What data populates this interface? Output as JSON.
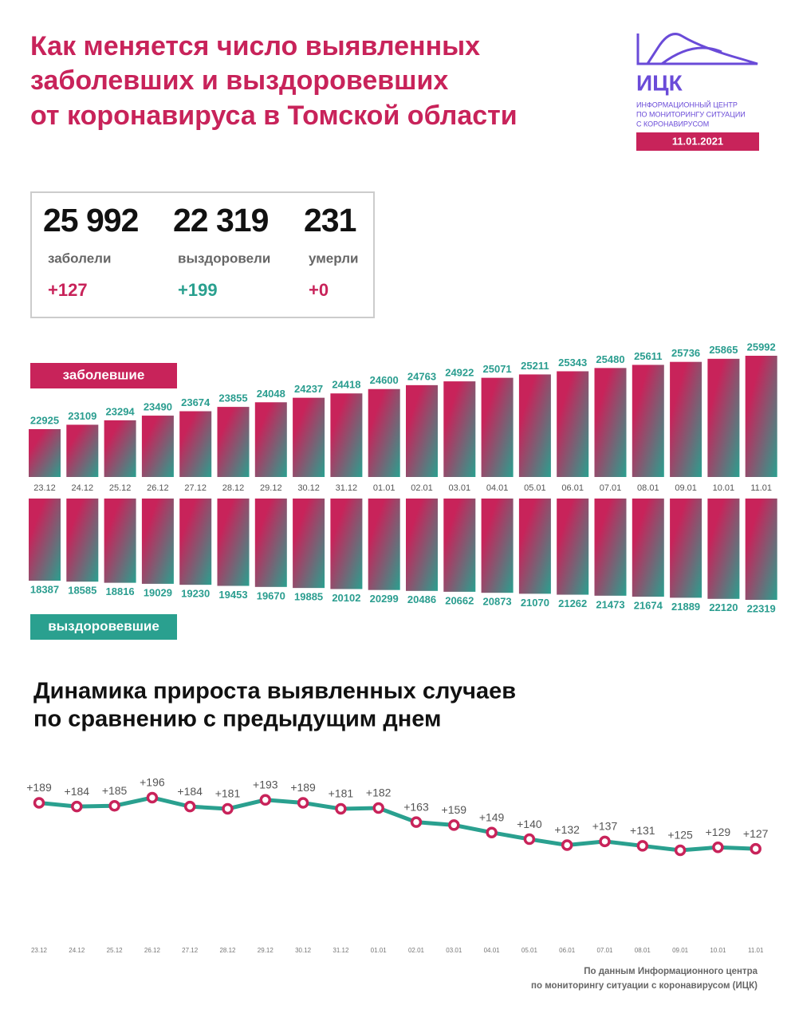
{
  "header": {
    "title": [
      "Как меняется число выявленных",
      "заболевших и выздоровевших",
      "от коронавируса в Томской области"
    ],
    "logo": {
      "name": "ИЦК",
      "subtitle": [
        "ИНФОРМАЦИОННЫЙ ЦЕНТР",
        "ПО МОНИТОРИНГУ СИТУАЦИИ",
        "С КОРОНАВИРУСОМ"
      ],
      "date": "11.01.2021"
    }
  },
  "stats": [
    {
      "value": "25 992",
      "label": "заболели",
      "delta": "+127"
    },
    {
      "value": "22 319",
      "label": "выздоровели",
      "delta": "+199"
    },
    {
      "value": "231",
      "label": "умерли",
      "delta": "+0"
    }
  ],
  "chart_data": [
    {
      "type": "bar",
      "direction": "up",
      "title": "заболевшие",
      "title_color": "#c8235a",
      "categories": [
        "23.12",
        "24.12",
        "25.12",
        "26.12",
        "27.12",
        "28.12",
        "29.12",
        "30.12",
        "31.12",
        "01.01",
        "02.01",
        "03.01",
        "04.01",
        "05.01",
        "06.01",
        "07.01",
        "08.01",
        "09.01",
        "10.01",
        "11.01"
      ],
      "values": [
        22925,
        23109,
        23294,
        23490,
        23674,
        23855,
        24048,
        24237,
        24418,
        24600,
        24763,
        24922,
        25071,
        25211,
        25343,
        25480,
        25611,
        25736,
        25865,
        25992
      ],
      "colors": [
        "#c8235a",
        "#2aa08f"
      ]
    },
    {
      "type": "bar",
      "direction": "down",
      "title": "выздоровевшие",
      "title_color": "#2aa08f",
      "values": [
        18387,
        18585,
        18816,
        19029,
        19230,
        19453,
        19670,
        19885,
        20102,
        20299,
        20486,
        20662,
        20873,
        21070,
        21262,
        21473,
        21674,
        21889,
        22120,
        22319
      ],
      "colors": [
        "#c8235a",
        "#2aa08f"
      ]
    },
    {
      "type": "line",
      "title": [
        "Динамика прироста выявленных случаев",
        "по сравнению с предыдущим днем"
      ],
      "categories": [
        "23.12",
        "24.12",
        "25.12",
        "26.12",
        "27.12",
        "28.12",
        "29.12",
        "30.12",
        "31.12",
        "01.01",
        "02.01",
        "03.01",
        "04.01",
        "05.01",
        "06.01",
        "07.01",
        "08.01",
        "09.01",
        "10.01",
        "11.01"
      ],
      "values": [
        189,
        184,
        185,
        196,
        184,
        181,
        193,
        189,
        181,
        182,
        163,
        159,
        149,
        140,
        132,
        137,
        131,
        125,
        129,
        127
      ],
      "value_labels": [
        "+189",
        "+184",
        "+185",
        "+196",
        "+184",
        "+181",
        "+193",
        "+189",
        "+181",
        "+182",
        "+163",
        "+159",
        "+149",
        "+140",
        "+132",
        "+137",
        "+131",
        "+125",
        "+129",
        "+127"
      ],
      "color": "#2aa08f",
      "marker_color": "#c8235a"
    }
  ],
  "footer": [
    "По данным Информационного центра",
    "по мониторингу ситуации с коронавирусом (ИЦК)"
  ]
}
